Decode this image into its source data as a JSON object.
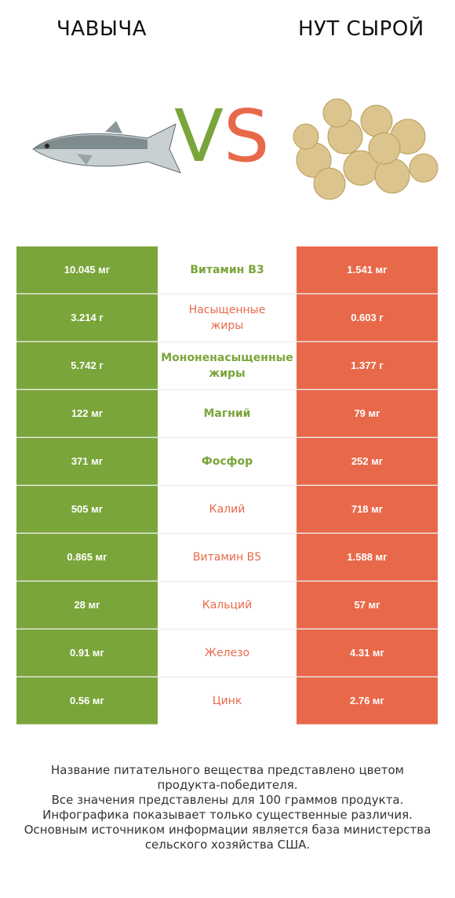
{
  "header": {
    "left_title": "ЧАВЫЧА",
    "right_title": "НУТ СЫРОЙ",
    "vs_v": "V",
    "vs_s": "S"
  },
  "colors": {
    "winner_left": "#7aa53a",
    "winner_right": "#e8694a"
  },
  "rows": [
    {
      "left": "10.045 мг",
      "name": "Витамин B3",
      "right": "1.541 мг",
      "winner": "left"
    },
    {
      "left": "3.214 г",
      "name": "Насыщенные\nжиры",
      "right": "0.603 г",
      "winner": "right"
    },
    {
      "left": "5.742 г",
      "name": "Мононенасыщенные\nжиры",
      "right": "1.377 г",
      "winner": "left"
    },
    {
      "left": "122 мг",
      "name": "Магний",
      "right": "79 мг",
      "winner": "left"
    },
    {
      "left": "371 мг",
      "name": "Фосфор",
      "right": "252 мг",
      "winner": "left"
    },
    {
      "left": "505 мг",
      "name": "Калий",
      "right": "718 мг",
      "winner": "right"
    },
    {
      "left": "0.865 мг",
      "name": "Витамин B5",
      "right": "1.588 мг",
      "winner": "right"
    },
    {
      "left": "28 мг",
      "name": "Кальций",
      "right": "57 мг",
      "winner": "right"
    },
    {
      "left": "0.91 мг",
      "name": "Железо",
      "right": "4.31 мг",
      "winner": "right"
    },
    {
      "left": "0.56 мг",
      "name": "Цинк",
      "right": "2.76 мг",
      "winner": "right"
    }
  ],
  "footer": {
    "lines": [
      "Название питательного вещества представлено цветом",
      "продукта-победителя.",
      "Все значения представлены для 100 граммов продукта.",
      "Инфографика показывает только существенные различия.",
      "Основным источником информации является база министерства",
      "сельского хозяйства США."
    ]
  }
}
